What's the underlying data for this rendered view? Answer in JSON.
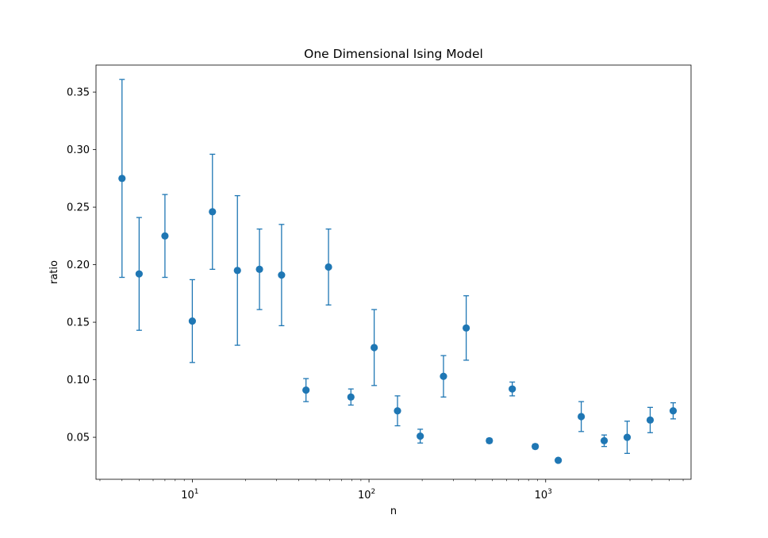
{
  "chart_data": {
    "type": "scatter",
    "title": "One Dimensional Ising Model",
    "xlabel": "n",
    "ylabel": "ratio",
    "xscale": "log",
    "xlim": [
      2.85,
      6650
    ],
    "ylim": [
      0.0135,
      0.3735
    ],
    "grid": false,
    "legend": "none",
    "xticks": [
      {
        "value": 10,
        "base": "10",
        "exp": "1"
      },
      {
        "value": 100,
        "base": "10",
        "exp": "2"
      },
      {
        "value": 1000,
        "base": "10",
        "exp": "3"
      }
    ],
    "yticks": [
      {
        "value": 0.05,
        "label": "0.05"
      },
      {
        "value": 0.1,
        "label": "0.10"
      },
      {
        "value": 0.15,
        "label": "0.15"
      },
      {
        "value": 0.2,
        "label": "0.20"
      },
      {
        "value": 0.25,
        "label": "0.25"
      },
      {
        "value": 0.3,
        "label": "0.30"
      },
      {
        "value": 0.35,
        "label": "0.35"
      }
    ],
    "color": "#1f77b4",
    "series": [
      {
        "points": [
          {
            "x": 4.0,
            "y": 0.275,
            "err": 0.086
          },
          {
            "x": 5.0,
            "y": 0.192,
            "err": 0.049
          },
          {
            "x": 7.0,
            "y": 0.225,
            "err": 0.036
          },
          {
            "x": 10.0,
            "y": 0.151,
            "err": 0.036
          },
          {
            "x": 13.0,
            "y": 0.246,
            "err": 0.05
          },
          {
            "x": 18.0,
            "y": 0.195,
            "err": 0.065
          },
          {
            "x": 24.0,
            "y": 0.196,
            "err": 0.035
          },
          {
            "x": 32.0,
            "y": 0.191,
            "err": 0.044
          },
          {
            "x": 44.0,
            "y": 0.091,
            "err": 0.01
          },
          {
            "x": 59.0,
            "y": 0.198,
            "err": 0.033
          },
          {
            "x": 79.0,
            "y": 0.085,
            "err": 0.007
          },
          {
            "x": 107.0,
            "y": 0.128,
            "err": 0.033
          },
          {
            "x": 145.0,
            "y": 0.073,
            "err": 0.013
          },
          {
            "x": 195.0,
            "y": 0.051,
            "err": 0.006
          },
          {
            "x": 264.0,
            "y": 0.103,
            "err": 0.018
          },
          {
            "x": 355.0,
            "y": 0.145,
            "err": 0.028
          },
          {
            "x": 480.0,
            "y": 0.047,
            "err": 0.002
          },
          {
            "x": 647.0,
            "y": 0.092,
            "err": 0.006
          },
          {
            "x": 873.0,
            "y": 0.042,
            "err": 0.002
          },
          {
            "x": 1178.0,
            "y": 0.03,
            "err": 0.0008
          },
          {
            "x": 1590.0,
            "y": 0.068,
            "err": 0.013
          },
          {
            "x": 2144.0,
            "y": 0.047,
            "err": 0.005
          },
          {
            "x": 2893.0,
            "y": 0.05,
            "err": 0.014
          },
          {
            "x": 3904.0,
            "y": 0.065,
            "err": 0.011
          },
          {
            "x": 5268.0,
            "y": 0.073,
            "err": 0.007
          }
        ]
      }
    ]
  }
}
